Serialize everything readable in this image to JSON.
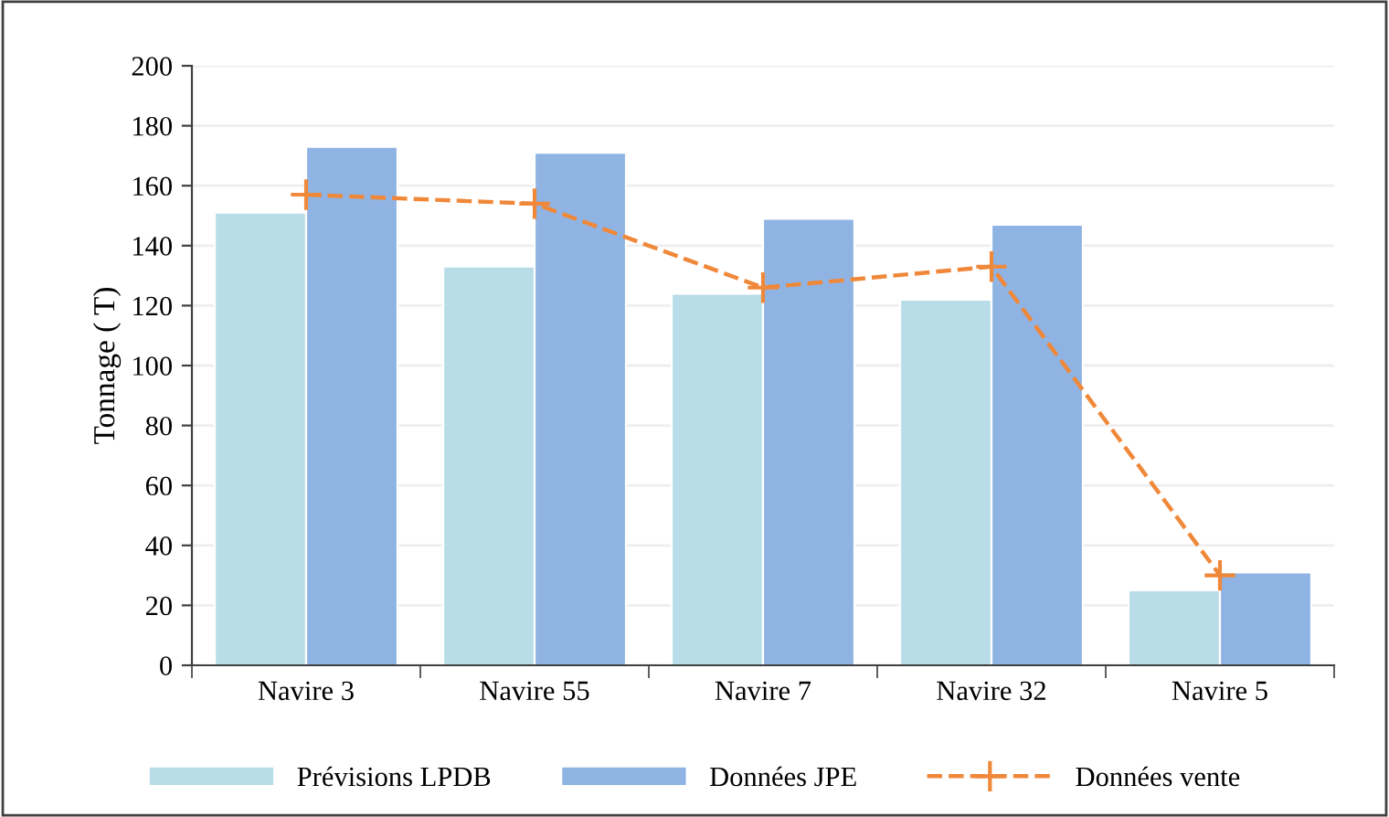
{
  "chart_data": {
    "type": "bar",
    "ylabel": "Tonnage ( T)",
    "categories": [
      "Navire 3",
      "Navire 55",
      "Navire 7",
      "Navire 32",
      "Navire 5"
    ],
    "series": [
      {
        "name": "Prévisions LPDB",
        "color": "#b8dde8",
        "values": [
          151,
          133,
          124,
          122,
          25
        ]
      },
      {
        "name": "Données JPE",
        "color": "#8fb4e3",
        "values": [
          173,
          171,
          149,
          147,
          31
        ]
      },
      {
        "name": "Données vente",
        "type": "line",
        "color": "#f0883a",
        "marker": "cross",
        "line_style": "dashed",
        "values": [
          157,
          154,
          126,
          133,
          30
        ]
      }
    ],
    "ylim": [
      0,
      200
    ],
    "yticks": [
      0,
      20,
      40,
      60,
      80,
      100,
      120,
      140,
      160,
      180,
      200
    ],
    "grid": "y",
    "legend": "bottom"
  }
}
